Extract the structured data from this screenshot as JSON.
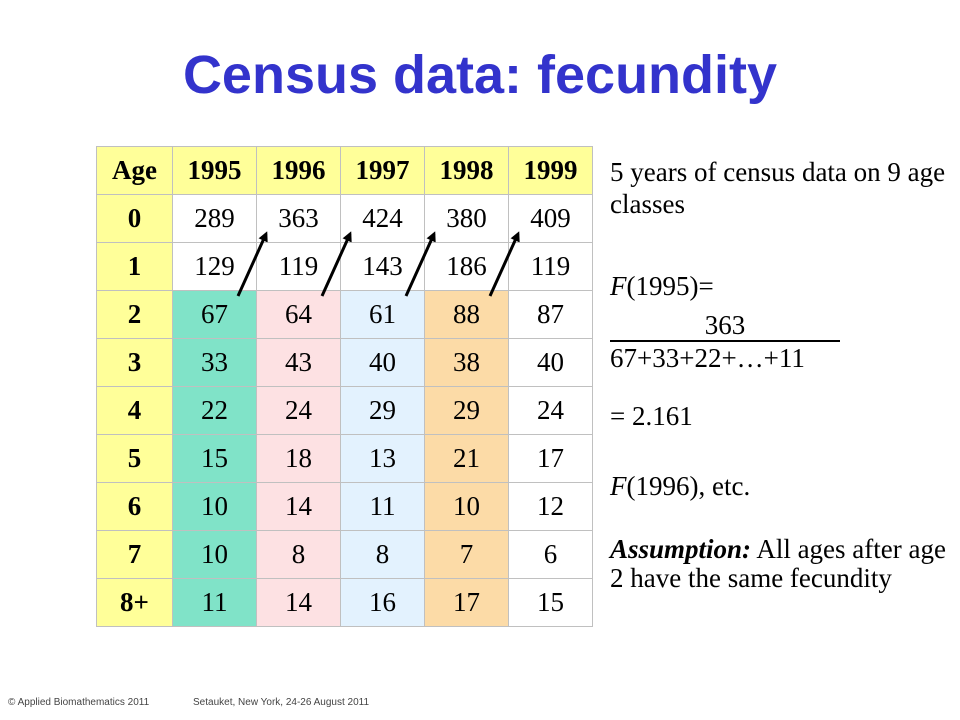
{
  "title": "Census data: fecundity",
  "table": {
    "headers": [
      "Age",
      "1995",
      "1996",
      "1997",
      "1998",
      "1999"
    ],
    "rows": [
      {
        "age": "0",
        "values": [
          "289",
          "363",
          "424",
          "380",
          "409"
        ]
      },
      {
        "age": "1",
        "values": [
          "129",
          "119",
          "143",
          "186",
          "119"
        ]
      },
      {
        "age": "2",
        "values": [
          "67",
          "64",
          "61",
          "88",
          "87"
        ]
      },
      {
        "age": "3",
        "values": [
          "33",
          "43",
          "40",
          "38",
          "40"
        ]
      },
      {
        "age": "4",
        "values": [
          "22",
          "24",
          "29",
          "29",
          "24"
        ]
      },
      {
        "age": "5",
        "values": [
          "15",
          "18",
          "13",
          "21",
          "17"
        ]
      },
      {
        "age": "6",
        "values": [
          "10",
          "14",
          "11",
          "10",
          "12"
        ]
      },
      {
        "age": "7",
        "values": [
          "10",
          "8",
          "8",
          "7",
          "6"
        ]
      },
      {
        "age": "8+",
        "values": [
          "11",
          "14",
          "16",
          "17",
          "15"
        ]
      }
    ],
    "highlight_colors": [
      "#80e3c8",
      "#fde1e3",
      "#e3f2fe",
      "#fcdba7"
    ]
  },
  "side": {
    "description": "5 years of census data on 9 age classes",
    "f_label": "F",
    "f_arg": "(1995)=",
    "numerator": "363",
    "denominator": "67+33+22+…+11",
    "result": "= 2.161",
    "etc_label": "F",
    "etc_rest": "(1996), etc.",
    "assumption_label": "Assumption:",
    "assumption_text": " All ages after age 2 have the same fecundity"
  },
  "footer": {
    "copyright": "© Applied Biomathematics 2011",
    "location": "Setauket, New York, 24-26 August 2011"
  }
}
